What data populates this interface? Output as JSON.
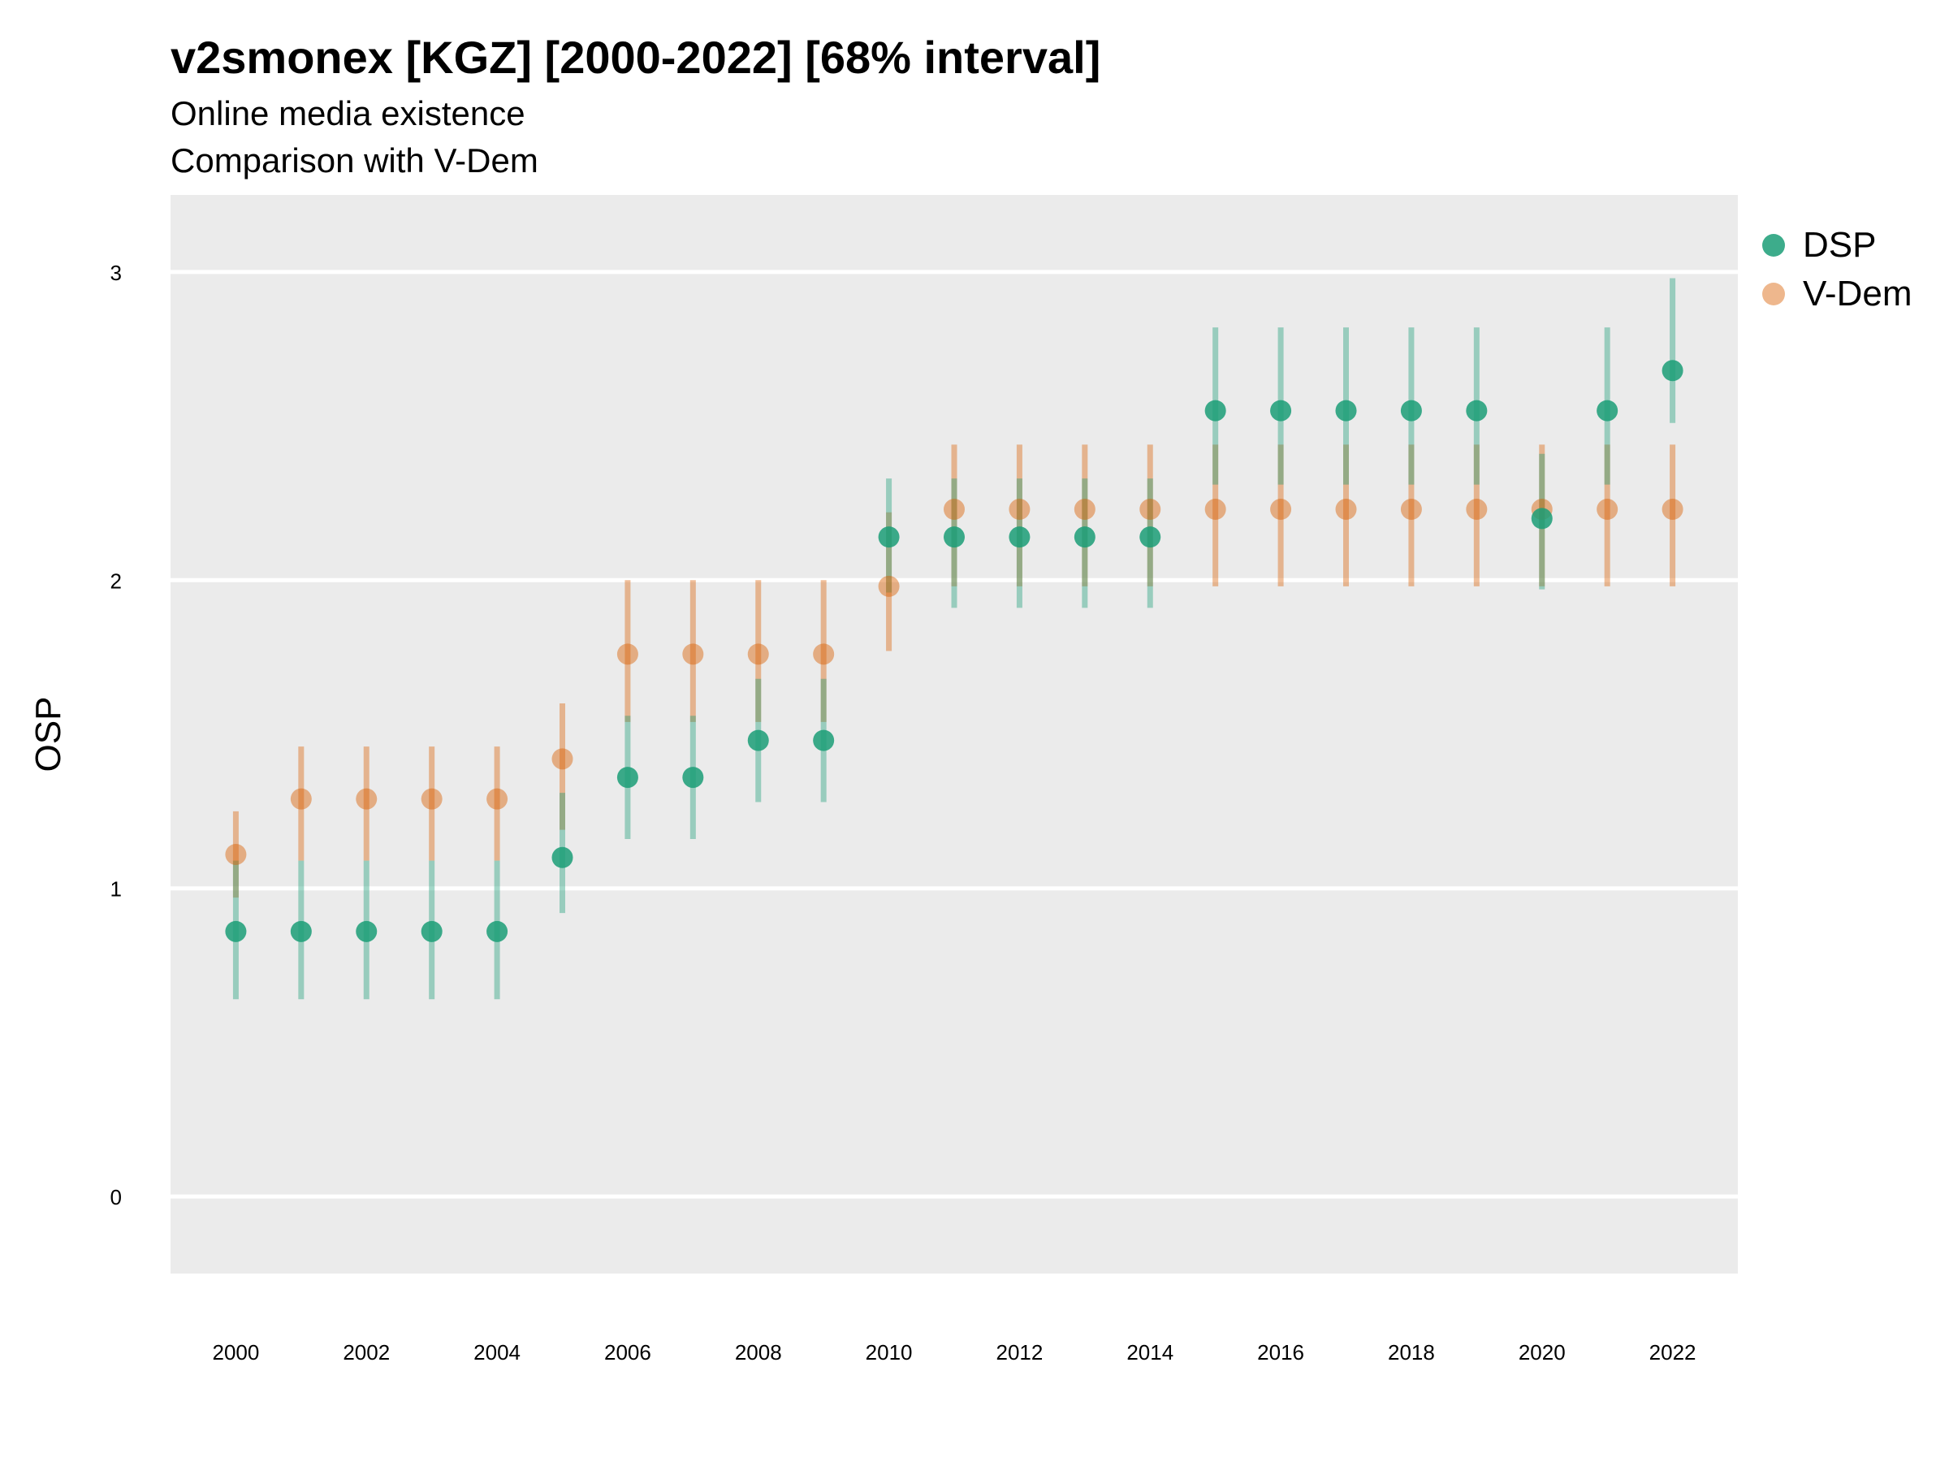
{
  "title": "v2smonex [KGZ] [2000-2022] [68% interval]",
  "subtitle": "Online media existence",
  "caption": "Comparison with V-Dem",
  "chart_data": {
    "type": "scatter",
    "title": "v2smonex [KGZ] [2000-2022] [68% interval]",
    "subtitle": "Online media existence",
    "caption": "Comparison with V-Dem",
    "xlabel": "",
    "ylabel": "OSP",
    "xlim": [
      1999.0,
      2023.0
    ],
    "ylim": [
      -0.25,
      3.25
    ],
    "x_ticks": [
      2000,
      2002,
      2004,
      2006,
      2008,
      2010,
      2012,
      2014,
      2016,
      2018,
      2020,
      2022
    ],
    "y_ticks": [
      0,
      1,
      2,
      3
    ],
    "grid": true,
    "legend_position": "right",
    "x": [
      2000,
      2001,
      2002,
      2003,
      2004,
      2005,
      2006,
      2007,
      2008,
      2009,
      2010,
      2011,
      2012,
      2013,
      2014,
      2015,
      2016,
      2017,
      2018,
      2019,
      2020,
      2021,
      2022
    ],
    "series": [
      {
        "name": "DSP",
        "color": "#1b9e77",
        "values": [
          0.86,
          0.86,
          0.86,
          0.86,
          0.86,
          1.1,
          1.36,
          1.36,
          1.48,
          1.48,
          2.14,
          2.14,
          2.14,
          2.14,
          2.14,
          2.55,
          2.55,
          2.55,
          2.55,
          2.55,
          2.2,
          2.55,
          2.68
        ],
        "lower": [
          0.64,
          0.64,
          0.64,
          0.64,
          0.64,
          0.92,
          1.16,
          1.16,
          1.28,
          1.28,
          1.96,
          1.91,
          1.91,
          1.91,
          1.91,
          2.31,
          2.31,
          2.31,
          2.31,
          2.31,
          1.97,
          2.31,
          2.51
        ],
        "upper": [
          1.09,
          1.09,
          1.09,
          1.09,
          1.09,
          1.31,
          1.56,
          1.56,
          1.68,
          1.68,
          2.33,
          2.33,
          2.33,
          2.33,
          2.33,
          2.82,
          2.82,
          2.82,
          2.82,
          2.82,
          2.41,
          2.82,
          2.98
        ]
      },
      {
        "name": "V-Dem",
        "color": "#d95f02",
        "values": [
          1.11,
          1.29,
          1.29,
          1.29,
          1.29,
          1.42,
          1.76,
          1.76,
          1.76,
          1.76,
          1.98,
          2.23,
          2.23,
          2.23,
          2.23,
          2.23,
          2.23,
          2.23,
          2.23,
          2.23,
          2.23,
          2.23,
          2.23
        ],
        "lower": [
          0.97,
          1.09,
          1.09,
          1.09,
          1.09,
          1.19,
          1.54,
          1.54,
          1.54,
          1.54,
          1.77,
          1.98,
          1.98,
          1.98,
          1.98,
          1.98,
          1.98,
          1.98,
          1.98,
          1.98,
          1.98,
          1.98,
          1.98
        ],
        "upper": [
          1.25,
          1.46,
          1.46,
          1.46,
          1.46,
          1.6,
          2.0,
          2.0,
          2.0,
          2.0,
          2.22,
          2.44,
          2.44,
          2.44,
          2.44,
          2.44,
          2.44,
          2.44,
          2.44,
          2.44,
          2.44,
          2.44,
          2.44
        ]
      }
    ]
  }
}
